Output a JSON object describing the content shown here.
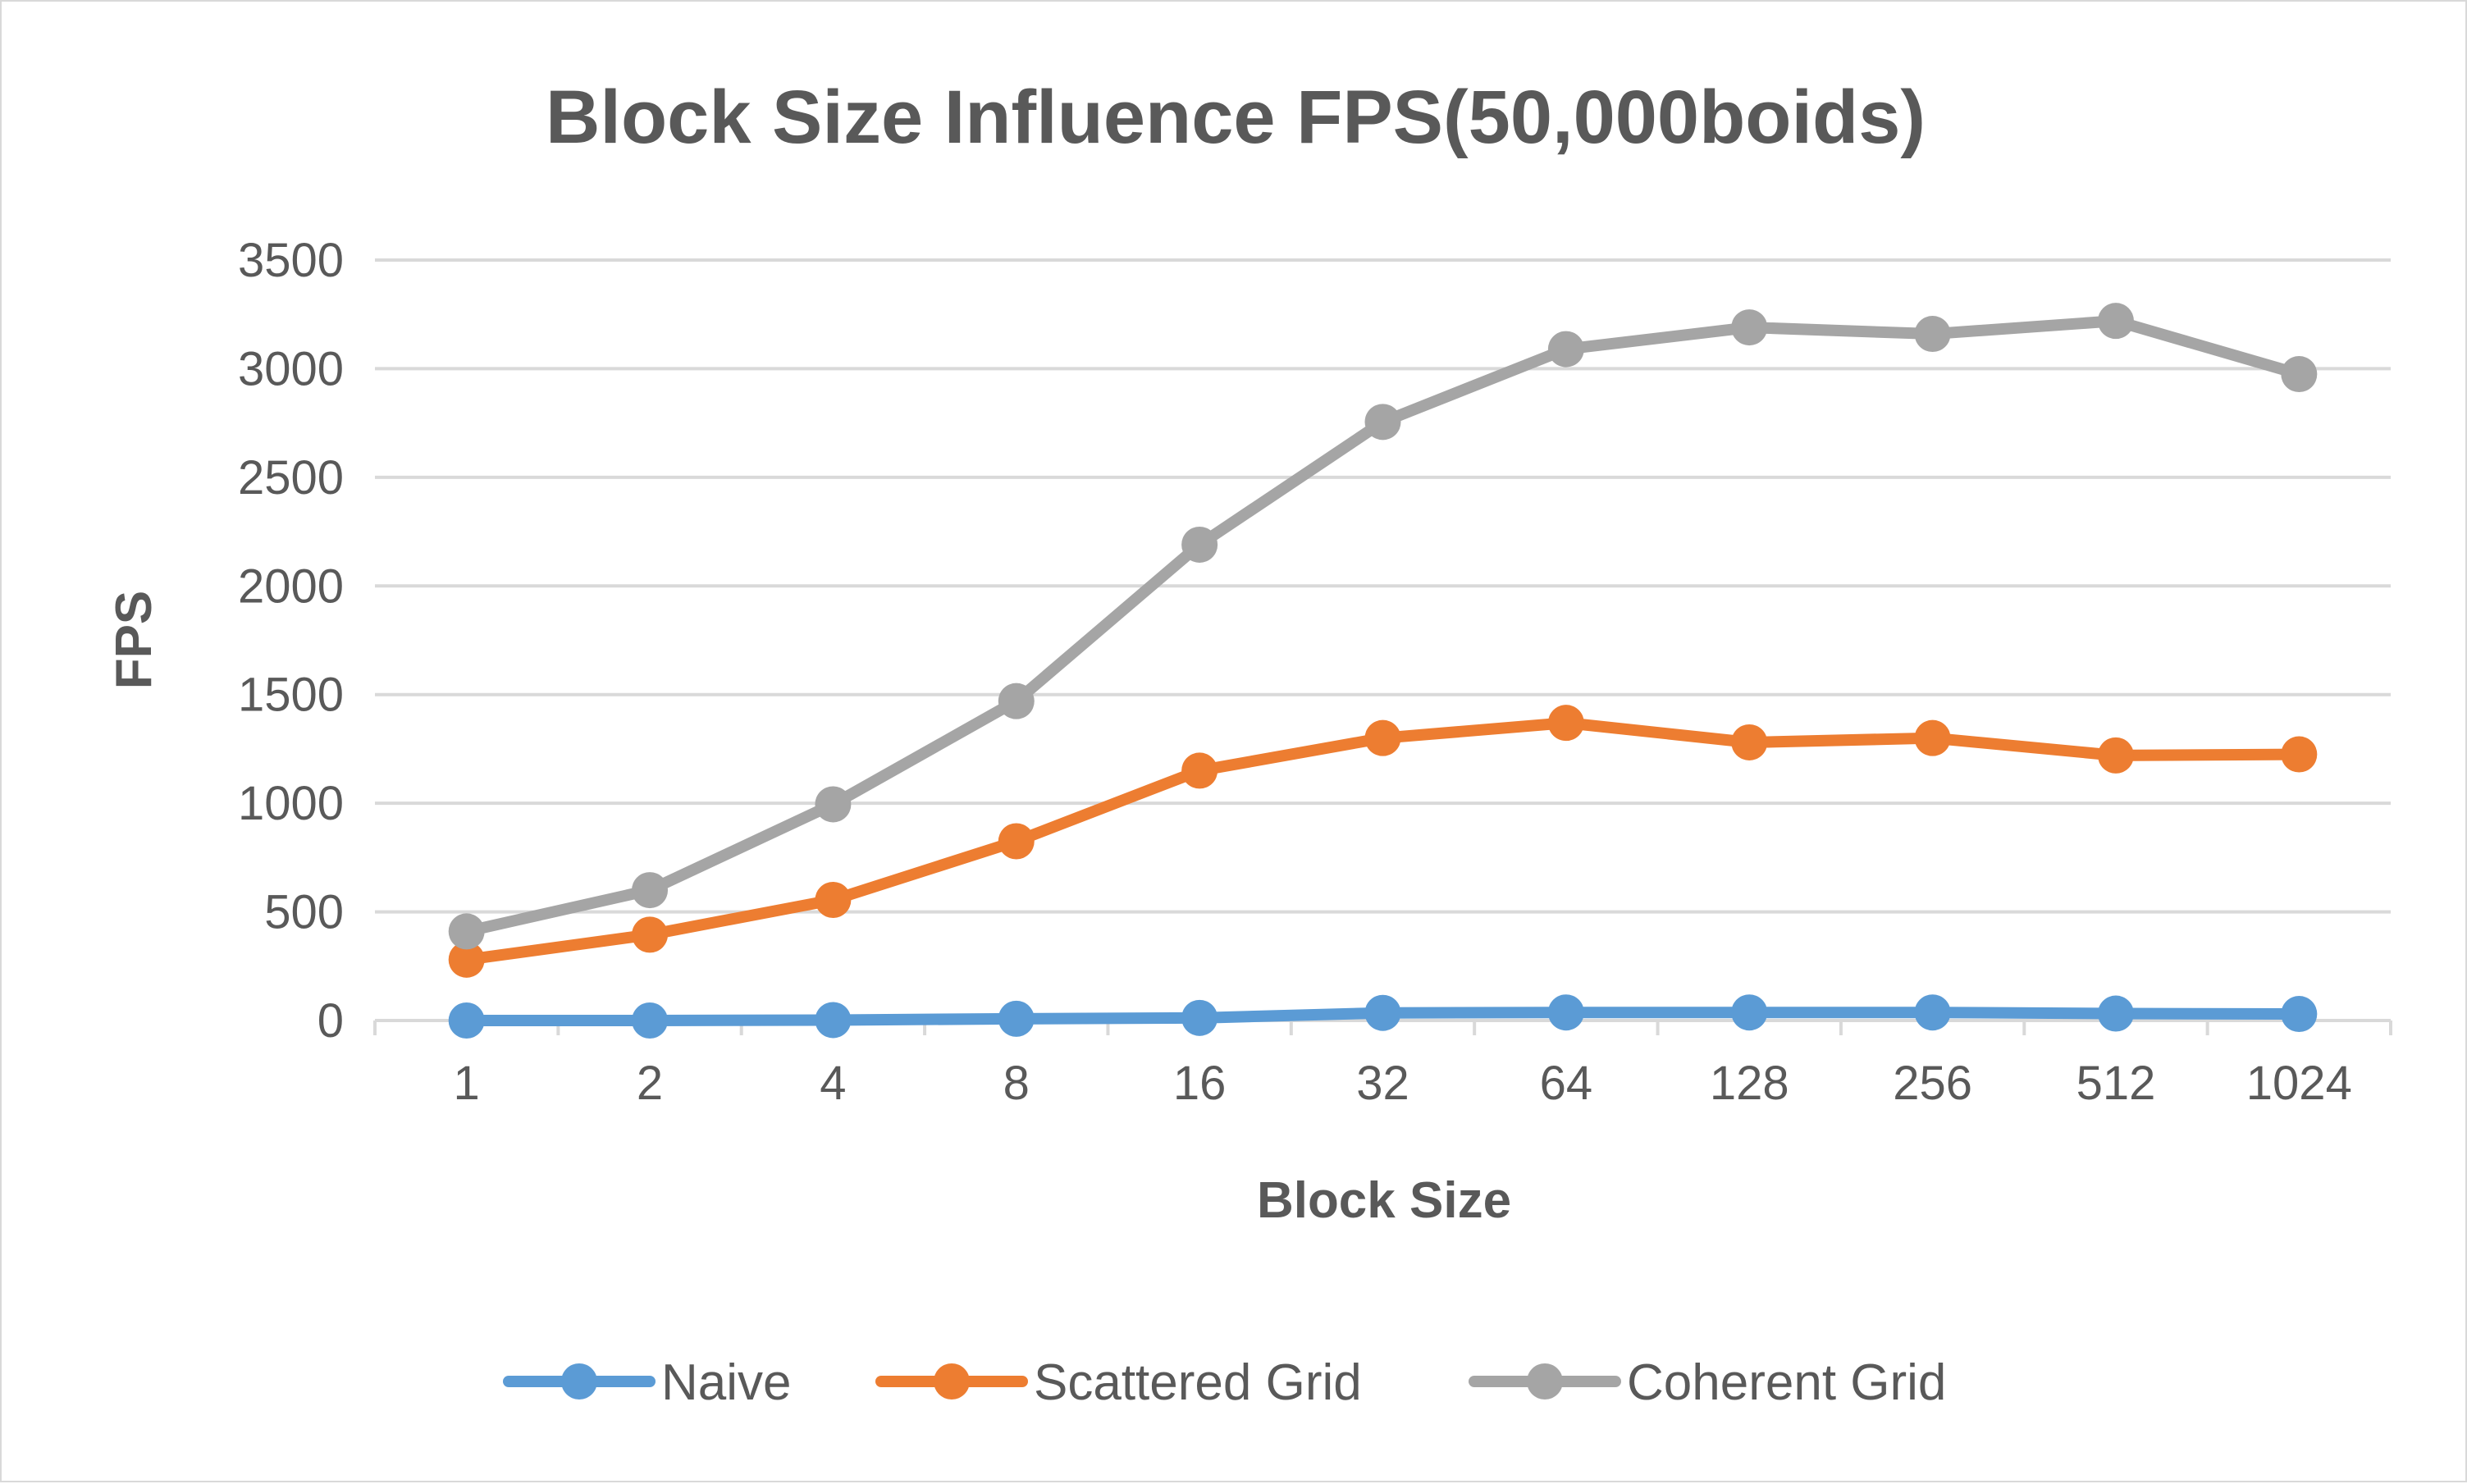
{
  "chart_data": {
    "type": "line",
    "title": "Block Size Influence FPS(50,000boids)",
    "xlabel": "Block Size",
    "ylabel": "FPS",
    "categories": [
      "1",
      "2",
      "4",
      "8",
      "16",
      "32",
      "64",
      "128",
      "256",
      "512",
      "1024"
    ],
    "ylim": [
      0,
      3500
    ],
    "yticks": [
      0,
      500,
      1000,
      1500,
      2000,
      2500,
      3000,
      3500
    ],
    "grid": true,
    "legend_position": "bottom",
    "series": [
      {
        "name": "Naive",
        "color": "#5b9bd5",
        "values": [
          0,
          0,
          2,
          8,
          12,
          35,
          37,
          37,
          37,
          32,
          30
        ]
      },
      {
        "name": "Scattered Grid",
        "color": "#ed7d31",
        "values": [
          280,
          395,
          555,
          825,
          1150,
          1300,
          1370,
          1280,
          1300,
          1220,
          1225
        ]
      },
      {
        "name": "Coherent Grid",
        "color": "#a5a5a5",
        "values": [
          410,
          600,
          995,
          1470,
          2190,
          2755,
          3090,
          3190,
          3160,
          3220,
          2975
        ]
      }
    ]
  }
}
